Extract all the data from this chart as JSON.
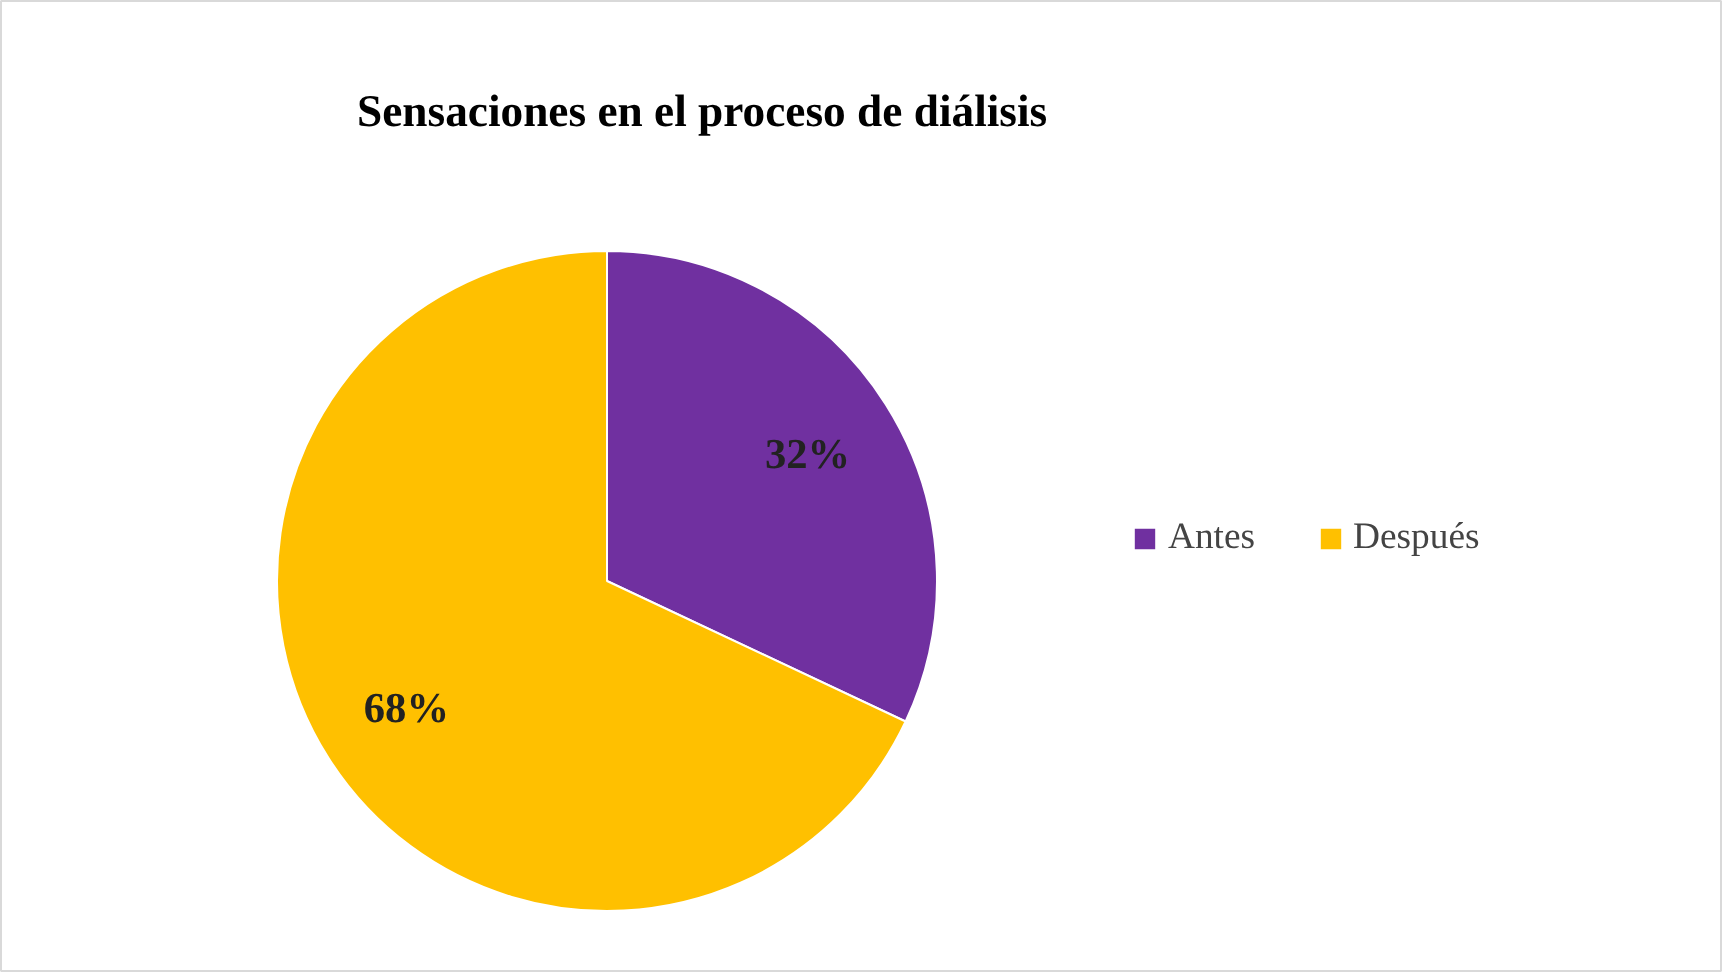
{
  "chart_data": {
    "type": "pie",
    "title": "Sensaciones en el proceso de diálisis",
    "categories": [
      "Antes",
      "Después"
    ],
    "values": [
      32,
      68
    ],
    "colors": [
      "#7030a0",
      "#ffc000"
    ],
    "value_labels": [
      "32%",
      "68%"
    ],
    "legend": "right"
  }
}
